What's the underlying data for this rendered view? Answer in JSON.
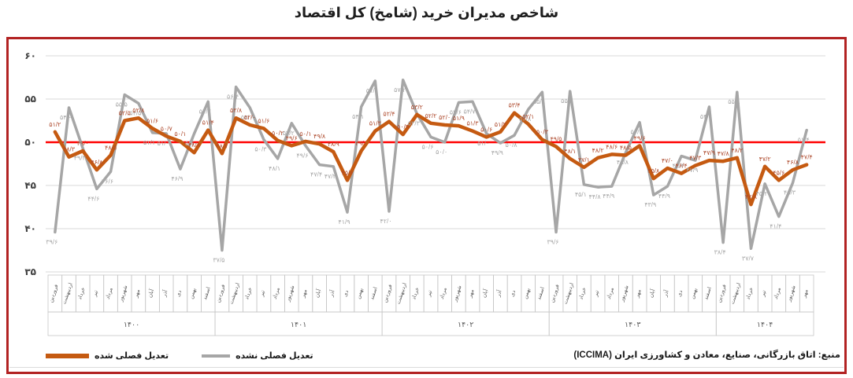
{
  "title": "شاخص مدیران خرید (شامخ) کل اقتصاد",
  "source": "منبع: اتاق بازرگانی، صنایع، معادن و کشاورزی ایران (ICCIMA)",
  "legend": {
    "seasonally_adjusted": "تعدیل فصلی شده",
    "not_seasonally_adjusted": "تعدیل فصلی نشده"
  },
  "colors": {
    "sa_line": "#c55a11",
    "sa_label": "#ae4a2d",
    "nsa_line": "#a6a6a6",
    "nsa_label": "#a6a6a6",
    "reference_line": "#ff0000",
    "frame_border": "#b22222",
    "gridline": "#d9d9d9",
    "axis_text": "#595959",
    "ytick_text": "#404040"
  },
  "chart_data": {
    "type": "line",
    "title": "شاخص مدیران خرید (شامخ) کل اقتصاد",
    "ylim": [
      35,
      60
    ],
    "grid": true,
    "legend_position": "bottom-left",
    "reference_line": 50,
    "y_ticks": {
      "values": [
        60,
        55,
        50,
        45,
        40,
        35
      ],
      "labels": [
        "۶۰",
        "۵۵",
        "۵۰",
        "۴۵",
        "۴۰",
        "۳۵"
      ]
    },
    "month_names": [
      "فروردین",
      "اردیبهشت",
      "خرداد",
      "تیر",
      "مرداد",
      "شهریور",
      "مهر",
      "آبان",
      "آذر",
      "دی",
      "بهمن",
      "اسفند"
    ],
    "years": [
      {
        "label": "۱۴۰۰",
        "months": 12
      },
      {
        "label": "۱۴۰۱",
        "months": 12
      },
      {
        "label": "۱۴۰۲",
        "months": 12
      },
      {
        "label": "۱۴۰۳",
        "months": 12
      },
      {
        "label": "۱۴۰۴",
        "months": 7
      }
    ],
    "series": [
      {
        "id": "nsa",
        "name": "تعدیل فصلی نشده",
        "color": "#a6a6a6",
        "label_color": "#a6a6a6",
        "width": 3.5,
        "values": [
          39.6,
          54.0,
          49.3,
          44.6,
          46.6,
          55.5,
          54.5,
          51.1,
          51.0,
          46.9,
          51.0,
          54.7,
          37.5,
          56.4,
          54.0,
          50.3,
          48.1,
          52.2,
          49.6,
          47.4,
          47.2,
          41.9,
          54.1,
          57.1,
          42.0,
          57.2,
          53.3,
          50.6,
          50.0,
          54.6,
          54.7,
          51.0,
          49.9,
          50.8,
          53.8,
          55.8,
          39.6,
          55.9,
          45.1,
          44.8,
          44.9,
          48.8,
          52.3,
          43.9,
          44.9,
          48.4,
          47.9,
          54.1,
          38.4,
          55.8,
          37.7,
          45.2,
          41.4,
          45.3,
          51.4
        ]
      },
      {
        "id": "sa",
        "name": "تعدیل فصلی شده",
        "color": "#c55a11",
        "label_color": "#ae4a2d",
        "width": 4.5,
        "values": [
          51.2,
          48.3,
          49.0,
          46.8,
          48.5,
          52.5,
          52.8,
          51.6,
          50.7,
          50.1,
          48.8,
          51.4,
          48.7,
          52.8,
          52.0,
          51.6,
          50.2,
          49.6,
          50.1,
          49.8,
          48.9,
          45.6,
          49.0,
          51.3,
          52.4,
          50.9,
          53.2,
          52.2,
          52.0,
          51.9,
          51.3,
          50.6,
          51.2,
          53.4,
          52.1,
          50.3,
          49.5,
          48.1,
          47.1,
          48.2,
          48.6,
          48.5,
          49.6,
          45.8,
          47.0,
          46.4,
          47.3,
          47.9,
          47.8,
          48.2,
          42.8,
          47.2,
          45.6,
          46.8,
          47.4
        ]
      }
    ]
  }
}
